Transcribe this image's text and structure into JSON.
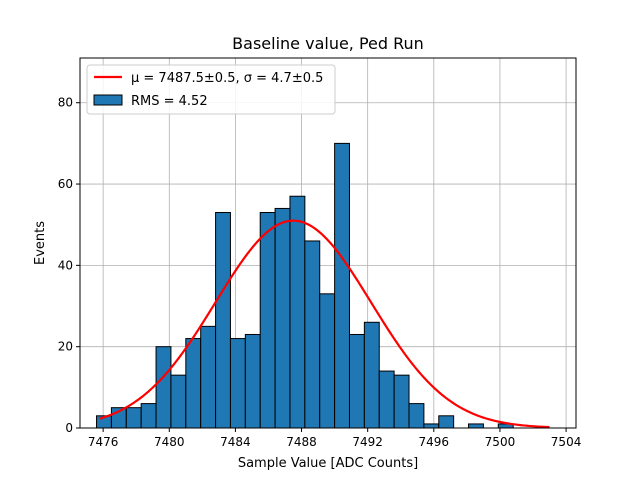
{
  "chart_data": {
    "type": "bar",
    "title": "Baseline value, Ped Run",
    "xlabel": "Sample Value [ADC Counts]",
    "ylabel": "Events",
    "xlim": [
      7474.6,
      7504.6
    ],
    "ylim": [
      0,
      91
    ],
    "xticks": [
      7476,
      7480,
      7484,
      7488,
      7492,
      7496,
      7500,
      7504
    ],
    "yticks": [
      0,
      20,
      40,
      60,
      80
    ],
    "grid": true,
    "legend_position": "top-left",
    "bins": {
      "start": 7475.6,
      "width": 0.9,
      "values": [
        3,
        5,
        5,
        6,
        20,
        13,
        22,
        25,
        53,
        22,
        23,
        53,
        54,
        57,
        46,
        33,
        70,
        23,
        26,
        14,
        13,
        6,
        1,
        3,
        0,
        1,
        0,
        1,
        0
      ]
    },
    "series": [
      {
        "name": "RMS = 4.52",
        "kind": "histogram",
        "color": "#1f77b4",
        "edgecolor": "#000000"
      },
      {
        "name": "$\\mu = 7487.5\\pm0.5$, $\\sigma = 4.7\\pm0.5$",
        "kind": "gaussian_fit",
        "color": "#ff0000",
        "mu": 7487.5,
        "sigma": 4.7,
        "amplitude": 51,
        "x_range": [
          7475.8,
          7503.0
        ]
      }
    ],
    "legend": [
      {
        "label": "μ = 7487.5±0.5, σ = 4.7±0.5",
        "kind": "line",
        "color": "#ff0000"
      },
      {
        "label": "RMS = 4.52",
        "kind": "patch",
        "color": "#1f77b4"
      }
    ]
  }
}
